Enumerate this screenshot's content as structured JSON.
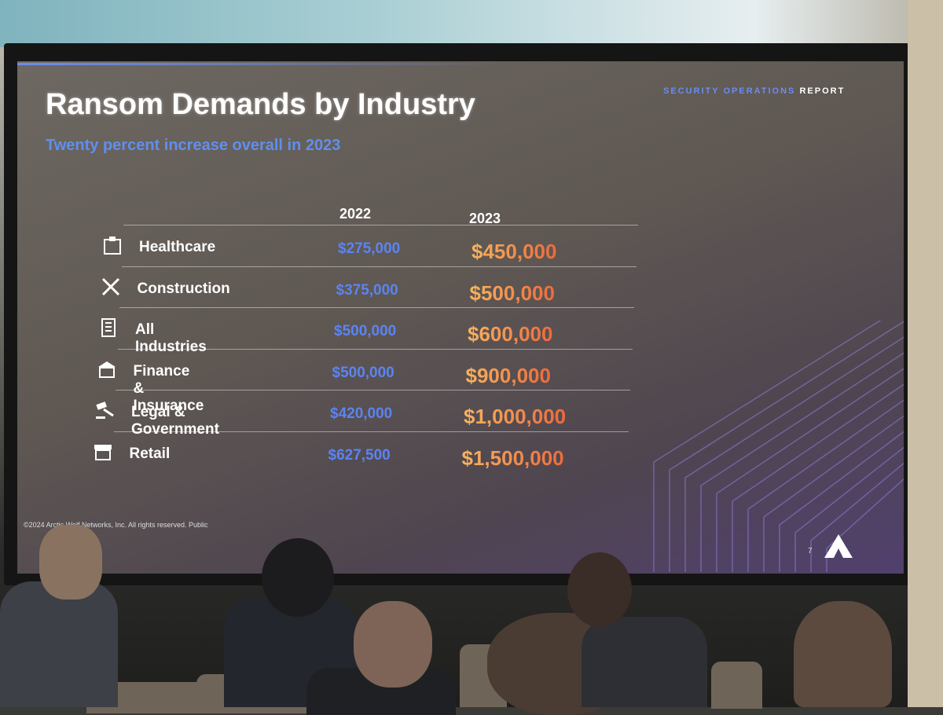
{
  "header": {
    "label_prefix": "SECURITY OPERATIONS",
    "label_suffix": "REPORT"
  },
  "title": "Ransom Demands by Industry",
  "subtitle": "Twenty percent increase overall in 2023",
  "table": {
    "columns": [
      "2022",
      "2023"
    ],
    "rows": [
      [
        "Healthcare",
        "$275,000",
        "$450,000"
      ],
      [
        "Construction",
        "$375,000",
        "$500,000"
      ],
      [
        "All Industries",
        "$500,000",
        "$600,000"
      ],
      [
        "Finance & Insurance",
        "$500,000",
        "$900,000"
      ],
      [
        "Legal & Government",
        "$420,000",
        "$1,000,000"
      ],
      [
        "Retail",
        "$627,500",
        "$1,500,000"
      ]
    ]
  },
  "footer": {
    "copyright": "©2024 Arctic Wolf Networks, Inc. All rights reserved. Public",
    "page": "7"
  }
}
